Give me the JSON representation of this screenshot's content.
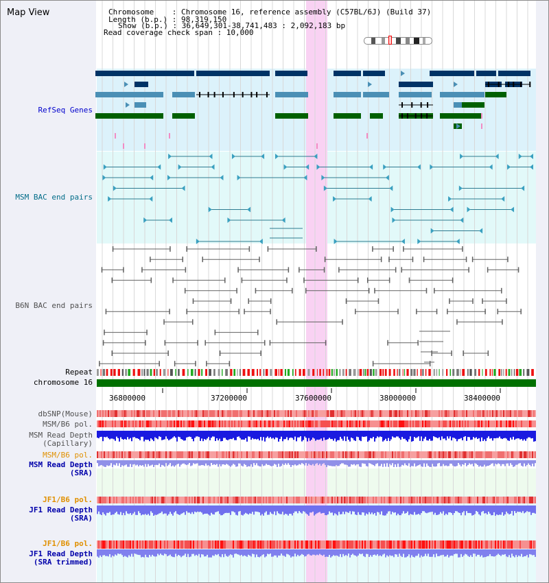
{
  "view_title": "Map View",
  "header": {
    "chromosome": "Chromosome    : Chromosome 16, reference assembly (C57BL/6J) (Build 37)",
    "length": "Length (b.p.) : 98,319,150",
    "show": "Show (b.p.) : 36,649,301-38,741,483 : 2,092,183 bp",
    "coverage": "Read coverage check span : 10,000"
  },
  "track_labels": {
    "refseq": "RefSeq Genes",
    "msm_bac": "MSM BAC end pairs",
    "b6n_bac": "B6N BAC end pairs",
    "repeat": "Repeat",
    "chromosome": "chromosome 16",
    "dbsnp": "dbSNP(Mouse)",
    "msm_b6_pol_1": "MSM/B6 pol.",
    "msm_depth_cap": "MSM Read Depth\n(Capillary)",
    "msm_b6_pol_2": "MSM/B6 pol.",
    "msm_depth_sra": "MSM Read Depth\n(SRA)",
    "jf1_b6_pol_1": "JF1/B6 pol.",
    "jf1_depth_sra": "JF1 Read Depth\n(SRA)",
    "jf1_b6_pol_2": "JF1/B6 pol.",
    "jf1_depth_trim": "JF1 Read Depth\n(SRA trimmed)"
  },
  "axis": {
    "ticks": [
      "36800000",
      "37200000",
      "37600000",
      "38000000",
      "38400000"
    ],
    "range": [
      36649301,
      38741483
    ]
  },
  "colors": {
    "refseq_label": "#0000cc",
    "msm_bac_label": "#006c88",
    "b6n_bac_label": "#505050",
    "orange_label": "#e09000",
    "blue_label": "#0000aa",
    "highlight": "#f9d2f3"
  }
}
